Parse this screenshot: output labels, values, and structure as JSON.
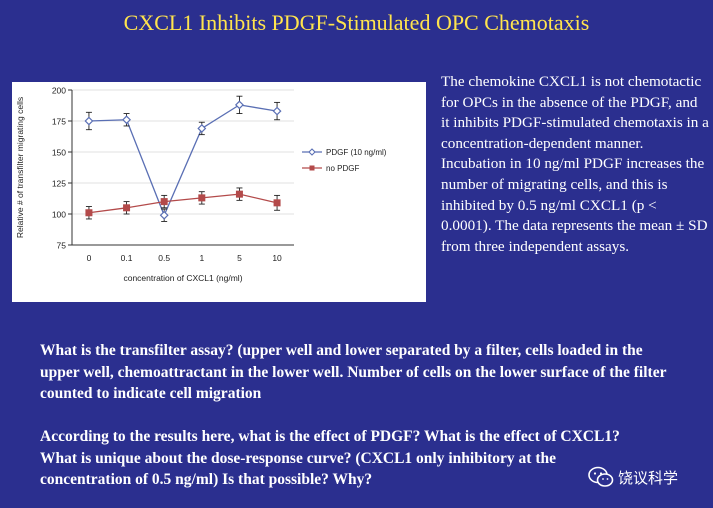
{
  "slide": {
    "title": "CXCL1 Inhibits PDGF-Stimulated OPC Chemotaxis",
    "description": "The chemokine CXCL1 is not chemotactic for OPCs in the absence of the PDGF, and it inhibits PDGF-stimulated chemotaxis in a concentration-dependent manner. Incubation in 10 ng/ml PDGF increases the number of migrating cells, and this is inhibited by 0.5 ng/ml CXCL1 (p < 0.0001). The data represents the mean ± SD from three independent assays.",
    "question1": "What is the transfilter assay? (upper well and lower separated by a filter, cells loaded in the upper well, chemoattractant in the lower well. Number of cells on the lower surface of the filter counted to indicate cell migration",
    "question2": "According to the results here, what is the effect of PDGF? What is the effect of CXCL1? What is unique about the dose-response curve? (CXCL1 only inhibitory at the concentration of 0.5 ng/ml) Is that possible? Why?",
    "watermark": "饶议科学"
  },
  "chart_data": {
    "type": "line",
    "title": "",
    "xlabel": "concentration of CXCL1 (ng/ml)",
    "ylabel": "Relative # of transfilter migrating cells",
    "categories": [
      "0",
      "0.1",
      "0.5",
      "1",
      "5",
      "10"
    ],
    "ylim": [
      75,
      200
    ],
    "yticks": [
      75,
      100,
      125,
      150,
      175,
      200
    ],
    "legend_position": "right",
    "series": [
      {
        "name": "PDGF (10 ng/ml)",
        "color": "#5a6fb4",
        "marker": "diamond",
        "values": [
          175,
          176,
          99,
          169,
          188,
          183
        ],
        "errors": [
          7,
          5,
          5,
          5,
          7,
          7
        ]
      },
      {
        "name": "no PDGF",
        "color": "#b34a4a",
        "marker": "square",
        "values": [
          101,
          105,
          110,
          113,
          116,
          109
        ],
        "errors": [
          5,
          5,
          5,
          5,
          5,
          6
        ]
      }
    ]
  }
}
